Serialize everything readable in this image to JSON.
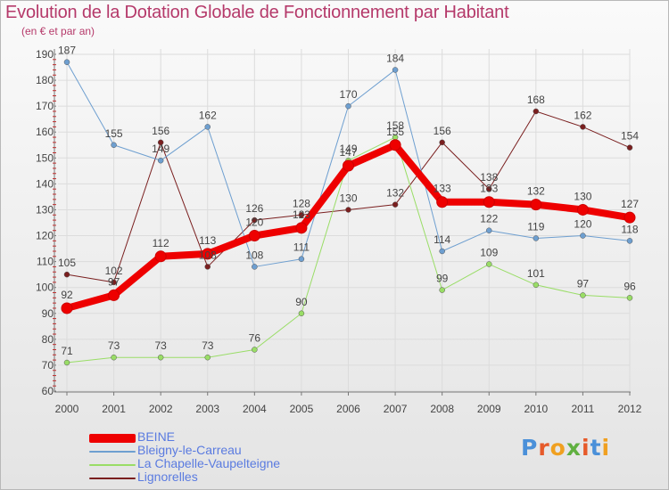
{
  "title": "Evolution de la Dotation Globale de Fonctionnement par Habitant",
  "subtitle": "(en € et par an)",
  "logo": {
    "letters": [
      "P",
      "r",
      "o",
      "x",
      "i",
      "t",
      "i"
    ],
    "colors": [
      "#4a90d9",
      "#e65a2a",
      "#f0a020",
      "#60b040",
      "#e65a2a",
      "#4a90d9",
      "#f0a020"
    ]
  },
  "chart_data": {
    "type": "line",
    "x": [
      "2000",
      "2001",
      "2002",
      "2003",
      "2004",
      "2005",
      "2006",
      "2007",
      "2008",
      "2009",
      "2010",
      "2011",
      "2012"
    ],
    "ylim": [
      60,
      190
    ],
    "yticks": [
      "60",
      "70",
      "80",
      "90",
      "100",
      "110",
      "120",
      "130",
      "140",
      "150",
      "160",
      "170",
      "180",
      "190"
    ],
    "grid": true,
    "series": [
      {
        "name": "Lignorelles",
        "color": "#7a1f1f",
        "width": 1,
        "values": [
          105,
          102,
          156,
          108,
          126,
          128,
          130,
          132,
          156,
          138,
          168,
          162,
          154
        ]
      },
      {
        "name": "La Chapelle-Vaupelteigne",
        "color": "#99dd66",
        "width": 1,
        "values": [
          71,
          73,
          73,
          73,
          76,
          90,
          149,
          158,
          99,
          109,
          101,
          97,
          96
        ]
      },
      {
        "name": "Bleigny-le-Carreau",
        "color": "#6e9fd0",
        "width": 1,
        "values": [
          187,
          155,
          149,
          162,
          108,
          111,
          170,
          184,
          114,
          122,
          119,
          120,
          118
        ]
      },
      {
        "name": "BEINE",
        "color": "#ee0000",
        "width": 8,
        "values": [
          92,
          97,
          112,
          113,
          120,
          123,
          147,
          155,
          133,
          133,
          132,
          130,
          127
        ]
      }
    ],
    "legend_order": [
      "BEINE",
      "Bleigny-le-Carreau",
      "La Chapelle-Vaupelteigne",
      "Lignorelles"
    ],
    "legend_placement": "bottom-left"
  }
}
